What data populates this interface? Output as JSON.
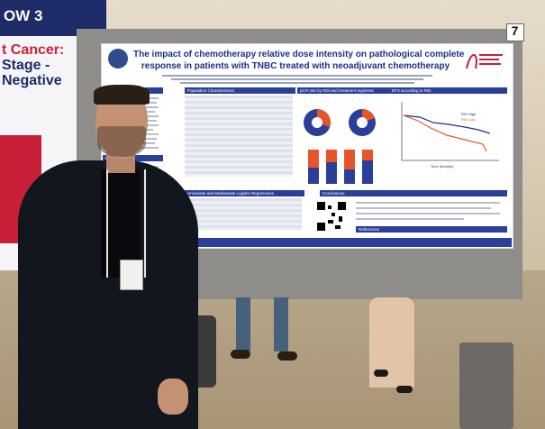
{
  "banner": {
    "word1": "OW 3",
    "line1": "t Cancer:",
    "line2": "Stage -",
    "line3": "Negative"
  },
  "board": {
    "number": "7"
  },
  "poster": {
    "title_line1": "The impact of chemotherapy relative dose intensity on pathological complete",
    "title_line2": "response in patients with TNBC treated with neoadjuvant chemotherapy",
    "sections": {
      "background": "ground",
      "population": "Population Characteristics",
      "pcr": "pCR rate by RDI and treatment regimens",
      "efs": "EFS according to RDI",
      "methods": "Methods",
      "regressions": "Univariate and Multivariate Logistic Regressions",
      "conclusions": "Conclusions",
      "references": "References"
    },
    "efs": {
      "legend_high": "RDI High",
      "legend_low": "RDI Low",
      "xlabel": "Time (Months)"
    }
  }
}
